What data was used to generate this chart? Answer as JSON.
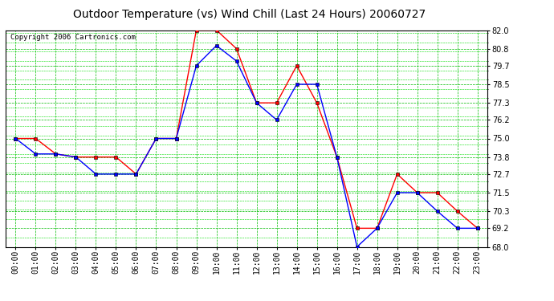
{
  "title": "Outdoor Temperature (vs) Wind Chill (Last 24 Hours) 20060727",
  "copyright": "Copyright 2006 Cartronics.com",
  "hours": [
    "00:00",
    "01:00",
    "02:00",
    "03:00",
    "04:00",
    "05:00",
    "06:00",
    "07:00",
    "08:00",
    "09:00",
    "10:00",
    "11:00",
    "12:00",
    "13:00",
    "14:00",
    "15:00",
    "16:00",
    "17:00",
    "18:00",
    "19:00",
    "20:00",
    "21:00",
    "22:00",
    "23:00"
  ],
  "temp": [
    75.0,
    75.0,
    74.0,
    73.8,
    73.8,
    73.8,
    72.7,
    75.0,
    75.0,
    82.0,
    82.0,
    80.8,
    77.3,
    77.3,
    79.7,
    77.3,
    73.8,
    69.2,
    69.2,
    72.7,
    71.5,
    71.5,
    70.3,
    69.2
  ],
  "windchill": [
    75.0,
    74.0,
    74.0,
    73.8,
    72.7,
    72.7,
    72.7,
    75.0,
    75.0,
    79.7,
    81.0,
    80.0,
    77.3,
    76.2,
    78.5,
    78.5,
    73.8,
    68.0,
    69.2,
    71.5,
    71.5,
    70.3,
    69.2,
    69.2
  ],
  "ylim": [
    68.0,
    82.0
  ],
  "yticks": [
    68.0,
    69.2,
    70.3,
    71.5,
    72.7,
    73.8,
    75.0,
    76.2,
    77.3,
    78.5,
    79.7,
    80.8,
    82.0
  ],
  "temp_color": "#ff0000",
  "windchill_color": "#0000ff",
  "bg_color": "#ffffff",
  "plot_bg_color": "#ffffff",
  "grid_color_major": "#00bb00",
  "grid_color_minor": "#00dd00",
  "title_color": "#000000",
  "title_fontsize": 10,
  "copyright_fontsize": 6.5,
  "tick_label_color": "#000000",
  "tick_label_fontsize": 7,
  "marker": "s",
  "marker_size": 2.5,
  "linewidth": 1.0
}
